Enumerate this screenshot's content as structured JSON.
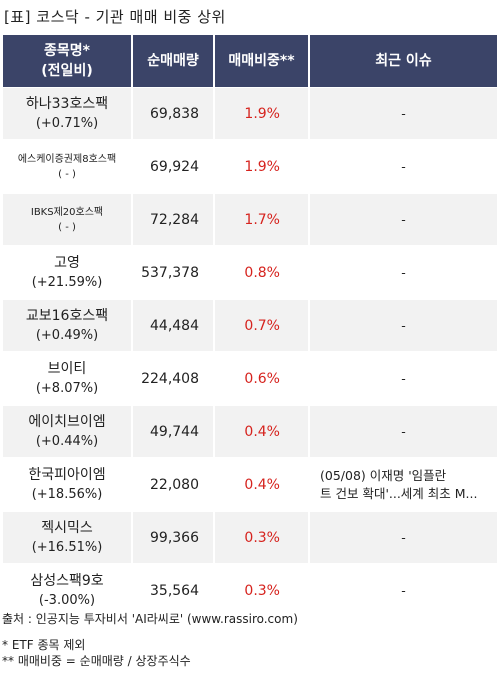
{
  "title": "[표] 코스닥 - 기관 매매 비중 상위",
  "headers": {
    "name_line1": "종목명*",
    "name_line2": "(전일비)",
    "volume": "순매매량",
    "ratio": "매매비중**",
    "issue": "최근 이슈"
  },
  "rows": [
    {
      "name": "하나33호스팩",
      "change": "(+0.71%)",
      "volume": "69,838",
      "ratio": "1.9%",
      "issue_line1": "-",
      "issue_line2": ""
    },
    {
      "name": "에스케이증권제8호스팩",
      "change": "( - )",
      "volume": "69,924",
      "ratio": "1.9%",
      "issue_line1": "-",
      "issue_line2": ""
    },
    {
      "name": "IBKS제20호스팩",
      "change": "( - )",
      "volume": "72,284",
      "ratio": "1.7%",
      "issue_line1": "-",
      "issue_line2": ""
    },
    {
      "name": "고영",
      "change": "(+21.59%)",
      "volume": "537,378",
      "ratio": "0.8%",
      "issue_line1": "-",
      "issue_line2": ""
    },
    {
      "name": "교보16호스팩",
      "change": "(+0.49%)",
      "volume": "44,484",
      "ratio": "0.7%",
      "issue_line1": "-",
      "issue_line2": ""
    },
    {
      "name": "브이티",
      "change": "(+8.07%)",
      "volume": "224,408",
      "ratio": "0.6%",
      "issue_line1": "-",
      "issue_line2": ""
    },
    {
      "name": "에이치브이엠",
      "change": "(+0.44%)",
      "volume": "49,744",
      "ratio": "0.4%",
      "issue_line1": "-",
      "issue_line2": ""
    },
    {
      "name": "한국피아이엠",
      "change": "(+18.56%)",
      "volume": "22,080",
      "ratio": "0.4%",
      "issue_line1": "(05/08) 이재명 '임플란",
      "issue_line2": "트 건보 확대'...세계 최초 M..."
    },
    {
      "name": "젝시믹스",
      "change": "(+16.51%)",
      "volume": "99,366",
      "ratio": "0.3%",
      "issue_line1": "-",
      "issue_line2": ""
    },
    {
      "name": "삼성스팩9호",
      "change": "(-3.00%)",
      "volume": "35,564",
      "ratio": "0.3%",
      "issue_line1": "-",
      "issue_line2": ""
    }
  ],
  "footer": {
    "source": "출처 : 인공지능 투자비서 'AI라씨로' (www.rassiro.com)",
    "note1": "* ETF 종목 제외",
    "note2": "** 매매비중 = 순매매량 / 상장주식수"
  }
}
